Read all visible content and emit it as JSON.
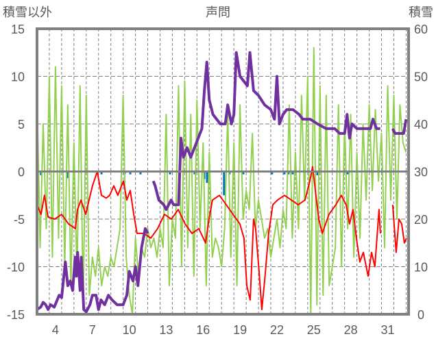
{
  "chart_data": {
    "type": "line",
    "title": "声問",
    "ylabel_left": "積雪以外",
    "ylabel_right": "積雪",
    "xlim": [
      3,
      33.2
    ],
    "ylim_left": [
      -15,
      15
    ],
    "ylim_right": [
      0,
      60
    ],
    "yticks_left": [
      "15",
      "10",
      "5",
      "0",
      "-5",
      "-10",
      "-15"
    ],
    "yticks_right": [
      "60",
      "50",
      "40",
      "30",
      "20",
      "10",
      "0"
    ],
    "xticks": [
      "4",
      "7",
      "10",
      "13",
      "16",
      "19",
      "22",
      "25",
      "28",
      "31"
    ],
    "grid": true,
    "colors": {
      "temperature": "#ff0000",
      "green": "#92d050",
      "snow": "#7030a0",
      "precip": "#0070c0",
      "axis": "#808080"
    },
    "series": [
      {
        "name": "green",
        "axis": "left",
        "color": "#92d050",
        "x_start": 3,
        "x_step": 0.25,
        "values": [
          8,
          -8,
          5,
          -6,
          10,
          -9,
          11,
          -7,
          9,
          -10,
          7,
          -12,
          3,
          -11,
          9,
          -14,
          8,
          -13,
          -9,
          -11,
          -8,
          -12,
          -10,
          -11,
          -9,
          -10,
          -8,
          -6,
          8,
          -9,
          -13,
          -15,
          -7,
          -11,
          -8,
          -9,
          -6,
          -8,
          -7,
          -9,
          -6,
          -8,
          6,
          -12,
          -5,
          -7,
          9,
          -10,
          9.5,
          -8,
          6,
          -11,
          7.5,
          -6,
          3,
          -12,
          2,
          -9,
          -7,
          -8,
          -10,
          -6,
          6,
          -9,
          3,
          -12,
          7,
          -5,
          -2,
          -4,
          4,
          -6,
          -3,
          -5,
          -7,
          -6,
          -9,
          -7,
          -5,
          -8,
          -4,
          -6,
          7,
          -7,
          2,
          -6,
          8,
          -3,
          10,
          -15,
          13,
          -14,
          9,
          -13,
          8,
          -12,
          -10,
          -8,
          7,
          -10,
          5,
          -6,
          6,
          -9,
          2,
          -7,
          5,
          -3,
          7,
          -2,
          6.5,
          -1,
          4,
          -8,
          9,
          -3,
          8,
          -5,
          7,
          3,
          2
        ]
      },
      {
        "name": "temperature",
        "axis": "left",
        "color": "#ff0000",
        "points": [
          [
            3,
            -3.5
          ],
          [
            3.33,
            -4.5
          ],
          [
            3.6,
            -2.5
          ],
          [
            3.9,
            -4.8
          ],
          [
            4.45,
            -5
          ],
          [
            5.0,
            -4.5
          ],
          [
            5.56,
            -5.5
          ],
          [
            6.12,
            -6
          ],
          [
            6.29,
            -4
          ],
          [
            6.57,
            -3
          ],
          [
            6.96,
            -4.5
          ],
          [
            7.23,
            -3
          ],
          [
            7.51,
            -1.5
          ],
          [
            7.9,
            0
          ],
          [
            8.24,
            -2.5
          ],
          [
            8.63,
            -2.8
          ],
          [
            8.9,
            -2.5
          ],
          [
            9.24,
            -1.5
          ],
          [
            9.57,
            -2.5
          ],
          [
            10.02,
            -1
          ],
          [
            10.3,
            -3
          ],
          [
            10.58,
            -2
          ],
          [
            10.86,
            -4.5
          ],
          [
            11.13,
            -6.5
          ],
          [
            11.69,
            -6.5
          ],
          [
            12.25,
            -7
          ],
          [
            12.8,
            -6
          ],
          [
            13.36,
            -4.5
          ],
          [
            13.92,
            -5
          ],
          [
            14.48,
            -4
          ],
          [
            15.03,
            -5.5
          ],
          [
            15.59,
            -6.5
          ],
          [
            16.15,
            -6
          ],
          [
            16.7,
            -7.5
          ],
          [
            16.98,
            -5
          ],
          [
            17.26,
            -3
          ],
          [
            17.82,
            -2.5
          ],
          [
            18.38,
            -3.5
          ],
          [
            18.93,
            -4.5
          ],
          [
            19.49,
            -5.5
          ],
          [
            19.82,
            -7
          ],
          [
            20.05,
            -12
          ],
          [
            20.33,
            -13.5
          ],
          [
            20.6,
            -5
          ],
          [
            20.77,
            -6
          ],
          [
            21.05,
            -10.5
          ],
          [
            21.27,
            -14.5
          ],
          [
            21.5,
            -11.5
          ],
          [
            21.83,
            -6.5
          ],
          [
            22.16,
            -3.5
          ],
          [
            22.55,
            -3
          ],
          [
            23.11,
            -2.5
          ],
          [
            23.67,
            -3
          ],
          [
            24.23,
            -3.5
          ],
          [
            24.78,
            -3
          ],
          [
            25.17,
            -1
          ],
          [
            25.4,
            0.5
          ],
          [
            25.62,
            -2
          ],
          [
            25.9,
            -5
          ],
          [
            26.18,
            -6.5
          ],
          [
            26.73,
            -4.5
          ],
          [
            27.29,
            -3.5
          ],
          [
            27.73,
            -2.5
          ],
          [
            28.13,
            -3.5
          ],
          [
            28.4,
            -5.5
          ],
          [
            28.68,
            -4
          ],
          [
            28.96,
            -7
          ],
          [
            29.24,
            -9.5
          ],
          [
            29.52,
            -8.5
          ],
          [
            29.91,
            -11
          ],
          [
            30.19,
            -8.5
          ],
          [
            30.46,
            -10
          ],
          [
            30.8,
            -4
          ],
          [
            30.91,
            -6.5
          ],
          null,
          [
            31.91,
            -3.5
          ],
          [
            32.19,
            -8.5
          ],
          [
            32.42,
            -5
          ],
          [
            32.64,
            -5.5
          ],
          [
            32.86,
            -7.5
          ],
          [
            33.03,
            -7
          ]
        ]
      },
      {
        "name": "snow_depth",
        "axis": "right",
        "color": "#7030a0",
        "points": [
          [
            3,
            1
          ],
          [
            3.3,
            1.5
          ],
          [
            3.5,
            2.5
          ],
          [
            3.7,
            2
          ],
          [
            3.9,
            1
          ],
          [
            4.1,
            2
          ],
          [
            4.4,
            1.5
          ],
          [
            4.8,
            4
          ],
          [
            5.0,
            3.5
          ],
          [
            5.3,
            11
          ],
          [
            5.5,
            6
          ],
          [
            5.7,
            7
          ],
          [
            5.9,
            5
          ],
          [
            6.1,
            12
          ],
          [
            6.2,
            8
          ],
          [
            6.3,
            13
          ],
          [
            6.5,
            5
          ],
          [
            6.6,
            12
          ],
          [
            6.8,
            1
          ],
          [
            7.0,
            0.5
          ],
          [
            7.3,
            2
          ],
          [
            7.5,
            4
          ],
          [
            7.8,
            4
          ],
          [
            8.0,
            1
          ],
          [
            8.2,
            3
          ],
          [
            8.5,
            2
          ],
          [
            8.8,
            4
          ],
          [
            9.1,
            3
          ],
          [
            9.5,
            2
          ],
          [
            10.0,
            2
          ],
          [
            10.3,
            4
          ],
          [
            10.5,
            9
          ],
          [
            10.8,
            7
          ],
          [
            11.0,
            10
          ],
          [
            11.2,
            6
          ],
          [
            11.5,
            14
          ],
          [
            11.8,
            18
          ],
          [
            12.0,
            17
          ],
          null,
          [
            12.45,
            28
          ],
          [
            12.6,
            27
          ],
          [
            12.9,
            24
          ],
          [
            13.3,
            23
          ],
          [
            13.5,
            22
          ],
          [
            13.9,
            24
          ],
          [
            14.1,
            23
          ],
          [
            14.5,
            23
          ],
          [
            14.7,
            37
          ],
          [
            14.9,
            33
          ],
          [
            15.2,
            35
          ],
          [
            15.5,
            33
          ],
          [
            15.8,
            35
          ],
          [
            16.1,
            37
          ],
          [
            16.4,
            39
          ],
          [
            16.6,
            47
          ],
          [
            16.8,
            53
          ],
          [
            17.0,
            45
          ],
          [
            17.3,
            42
          ],
          [
            17.6,
            41
          ],
          [
            17.9,
            40
          ],
          [
            18.3,
            40
          ],
          [
            18.5,
            44
          ],
          [
            18.8,
            40
          ],
          [
            19.0,
            42
          ],
          [
            19.2,
            55
          ],
          [
            19.5,
            50
          ],
          [
            19.8,
            49
          ],
          [
            20.1,
            48
          ],
          [
            20.3,
            55
          ],
          [
            20.6,
            47
          ],
          [
            21.0,
            46
          ],
          [
            21.5,
            44
          ],
          [
            22.0,
            43
          ],
          [
            22.3,
            41
          ],
          [
            22.5,
            50
          ],
          [
            22.7,
            40
          ],
          [
            23.0,
            42
          ],
          [
            23.3,
            43
          ],
          [
            23.8,
            43
          ],
          [
            24.3,
            42
          ],
          [
            24.6,
            41
          ],
          [
            25.2,
            41
          ],
          [
            25.8,
            40
          ],
          [
            26.5,
            39
          ],
          [
            27.2,
            39
          ],
          [
            27.6,
            38
          ],
          [
            28.0,
            38
          ],
          [
            28.2,
            42
          ],
          [
            28.4,
            37
          ],
          [
            28.6,
            40
          ],
          [
            29.0,
            39
          ],
          [
            29.5,
            39
          ],
          [
            30.1,
            39
          ],
          [
            30.3,
            41
          ],
          [
            30.6,
            39
          ],
          [
            30.9,
            39
          ],
          null,
          [
            31.9,
            39
          ],
          [
            32.1,
            38
          ],
          [
            32.8,
            38
          ],
          [
            33.0,
            41
          ]
        ]
      },
      {
        "name": "precipitation",
        "axis": "left",
        "type": "bar",
        "color": "#0070c0",
        "points": [
          [
            3.33,
            -0.4
          ],
          [
            5.45,
            -0.7
          ],
          [
            8.24,
            -0.3
          ],
          [
            10.13,
            -0.3
          ],
          [
            10.58,
            -0.3
          ],
          [
            11.41,
            -0.3
          ],
          [
            13.81,
            -0.3
          ],
          [
            15.81,
            -0.3
          ],
          [
            16.6,
            -0.8
          ],
          [
            16.82,
            -1.2
          ],
          [
            16.98,
            -0.5
          ],
          [
            18.2,
            -2.5
          ],
          [
            18.65,
            -0.3
          ],
          [
            19.77,
            -0.3
          ],
          [
            22.1,
            -0.3
          ],
          [
            23.11,
            -0.3
          ],
          [
            23.44,
            -0.3
          ],
          [
            23.78,
            -0.3
          ],
          [
            25.79,
            -0.4
          ],
          [
            28.24,
            -0.3
          ]
        ]
      }
    ]
  }
}
